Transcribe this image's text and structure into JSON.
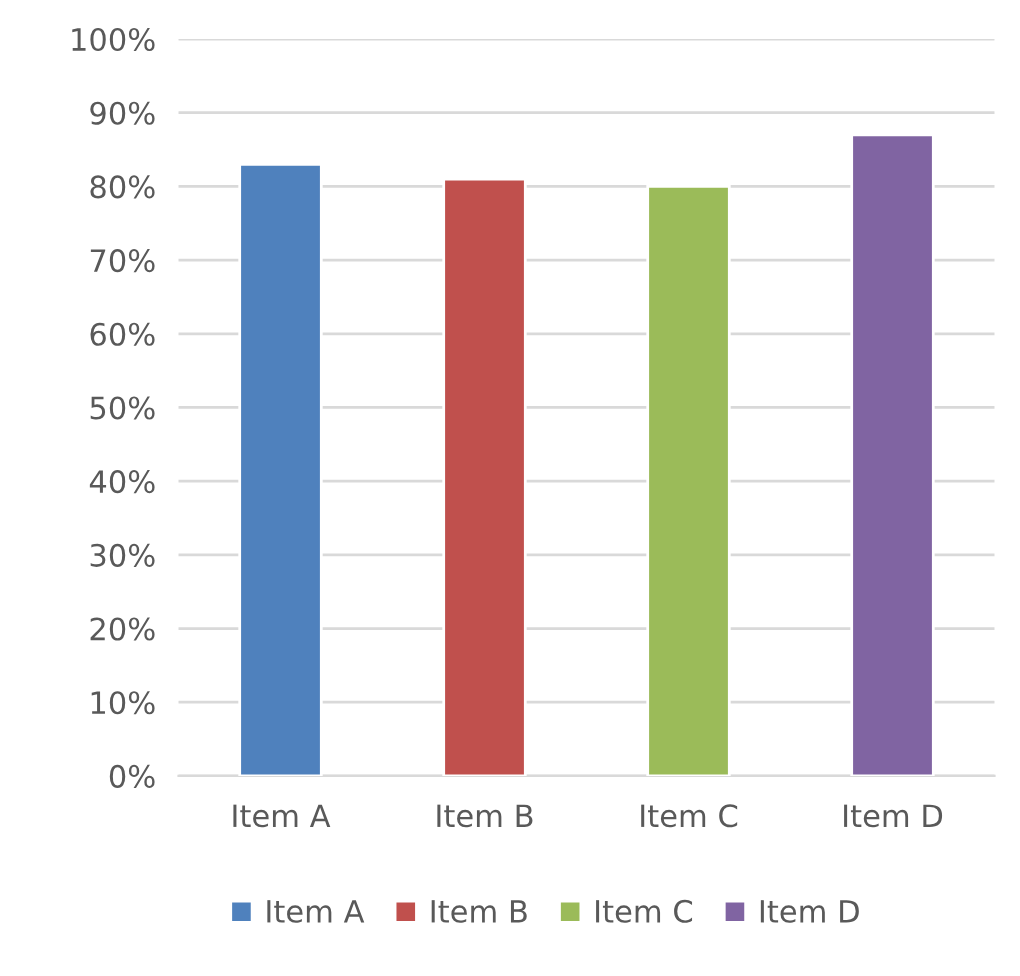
{
  "chart_data": {
    "type": "bar",
    "categories": [
      "Item A",
      "Item B",
      "Item C",
      "Item D"
    ],
    "stacked": true,
    "series": [
      {
        "name": "Item A",
        "color": "#4f81bd",
        "values": [
          83,
          null,
          null,
          null
        ]
      },
      {
        "name": "Item B",
        "color": "#c0504d",
        "values": [
          null,
          81,
          null,
          null
        ]
      },
      {
        "name": "Item C",
        "color": "#9bbb59",
        "values": [
          null,
          null,
          80,
          null
        ]
      },
      {
        "name": "Item D",
        "color": "#8064a2",
        "values": [
          null,
          null,
          null,
          87
        ]
      }
    ],
    "ylim": [
      0,
      100
    ],
    "yticks": [
      {
        "value": 0,
        "label": "0%"
      },
      {
        "value": 10,
        "label": "10%"
      },
      {
        "value": 20,
        "label": "20%"
      },
      {
        "value": 30,
        "label": "30%"
      },
      {
        "value": 40,
        "label": "40%"
      },
      {
        "value": 50,
        "label": "50%"
      },
      {
        "value": 60,
        "label": "60%"
      },
      {
        "value": 70,
        "label": "70%"
      },
      {
        "value": 80,
        "label": "80%"
      },
      {
        "value": 90,
        "label": "90%"
      },
      {
        "value": 100,
        "label": "100%"
      }
    ],
    "grid": "y",
    "legend": "bottom"
  }
}
